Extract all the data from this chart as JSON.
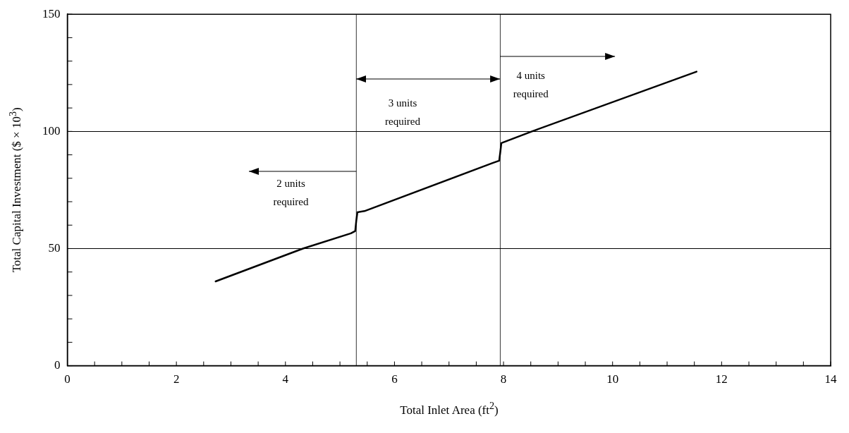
{
  "chart_data": {
    "type": "line",
    "xlabel": "Total Inlet Area (ft$^{2}$)",
    "ylabel": "Total Capital Investment ($ × 10$^{3}$)",
    "xlim": [
      0,
      14
    ],
    "xticks": [
      0,
      {
        "value": 0.5,
        "label": null
      },
      {
        "value": 1,
        "label": null
      },
      {
        "value": 1.5,
        "label": null
      },
      2,
      {
        "value": 2.5,
        "label": null
      },
      {
        "value": 3,
        "label": null
      },
      {
        "value": 3.5,
        "label": null
      },
      4,
      {
        "value": 4.5,
        "label": null
      },
      {
        "value": 5,
        "label": null
      },
      {
        "value": 5.5,
        "label": null
      },
      6,
      {
        "value": 6.5,
        "label": null
      },
      {
        "value": 7,
        "label": null
      },
      {
        "value": 7.5,
        "label": null
      },
      8,
      {
        "value": 8.5,
        "label": null
      },
      {
        "value": 9,
        "label": null
      },
      {
        "value": 9.5,
        "label": null
      },
      10,
      {
        "value": 10.5,
        "label": null
      },
      {
        "value": 11,
        "label": null
      },
      {
        "value": 11.5,
        "label": null
      },
      12,
      {
        "value": 12.5,
        "label": null
      },
      {
        "value": 13,
        "label": null
      },
      {
        "value": 13.5,
        "label": null
      },
      14
    ],
    "ylim": [
      0,
      150
    ],
    "yticks": [
      0,
      {
        "value": 10,
        "label": null
      },
      {
        "value": 20,
        "label": null
      },
      {
        "value": 30,
        "label": null
      },
      {
        "value": 40,
        "label": null
      },
      50,
      {
        "value": 60,
        "label": null
      },
      {
        "value": 70,
        "label": null
      },
      {
        "value": 80,
        "label": null
      },
      {
        "value": 90,
        "label": null
      },
      100,
      {
        "value": 110,
        "label": null
      },
      {
        "value": 120,
        "label": null
      },
      {
        "value": 130,
        "label": null
      },
      {
        "value": 140,
        "label": null
      },
      150
    ],
    "series": [
      {
        "color": "#000000",
        "x": [
          2.72,
          4.32,
          5.2,
          5.28,
          5.3,
          5.32,
          5.45,
          7.8,
          7.92,
          7.94,
          7.96,
          8.52,
          11.54
        ],
        "values": [
          36,
          50,
          56.5,
          57.5,
          62,
          65.5,
          66,
          86.5,
          87.5,
          91,
          95,
          100,
          125.5
        ]
      }
    ],
    "ref_lines": [
      {
        "axis": "x",
        "value": 5.3,
        "label": null,
        "color": "#000000"
      },
      {
        "axis": "x",
        "value": 7.94,
        "label": null,
        "color": "#000000"
      }
    ],
    "annotations": [
      "2 units\nrequired",
      "3 units\nrequired",
      "4 units\nrequired"
    ],
    "grid": "y",
    "legend": false,
    "marker": "none",
    "line_style": "solid"
  }
}
